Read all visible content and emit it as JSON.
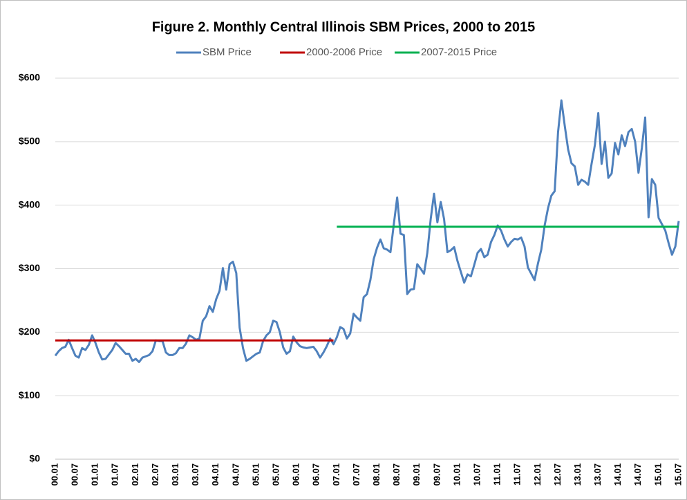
{
  "chart_data": {
    "type": "line",
    "title": "Figure 2.  Monthly Central Illinois SBM Prices, 2000 to 2015",
    "categories": [
      "00.01",
      null,
      null,
      null,
      null,
      null,
      "00.07",
      null,
      null,
      null,
      null,
      null,
      "01.01",
      null,
      null,
      null,
      null,
      null,
      "01.07",
      null,
      null,
      null,
      null,
      null,
      "02.01",
      null,
      null,
      null,
      null,
      null,
      "02.07",
      null,
      null,
      null,
      null,
      null,
      "03.01",
      null,
      null,
      null,
      null,
      null,
      "03.07",
      null,
      null,
      null,
      null,
      null,
      "04.01",
      null,
      null,
      null,
      null,
      null,
      "04.07",
      null,
      null,
      null,
      null,
      null,
      "05.01",
      null,
      null,
      null,
      null,
      null,
      "05.07",
      null,
      null,
      null,
      null,
      null,
      "06.01",
      null,
      null,
      null,
      null,
      null,
      "06.07",
      null,
      null,
      null,
      null,
      null,
      "07.01",
      null,
      null,
      null,
      null,
      null,
      "07.07",
      null,
      null,
      null,
      null,
      null,
      "08.01",
      null,
      null,
      null,
      null,
      null,
      "08.07",
      null,
      null,
      null,
      null,
      null,
      "09.01",
      null,
      null,
      null,
      null,
      null,
      "09.07",
      null,
      null,
      null,
      null,
      null,
      "10.01",
      null,
      null,
      null,
      null,
      null,
      "10.07",
      null,
      null,
      null,
      null,
      null,
      "11.01",
      null,
      null,
      null,
      null,
      null,
      "11.07",
      null,
      null,
      null,
      null,
      null,
      "12.01",
      null,
      null,
      null,
      null,
      null,
      "12.07",
      null,
      null,
      null,
      null,
      null,
      "13.01",
      null,
      null,
      null,
      null,
      null,
      "13.07",
      null,
      null,
      null,
      null,
      null,
      "14.01",
      null,
      null,
      null,
      null,
      null,
      "14.07",
      null,
      null,
      null,
      null,
      null,
      "15.01",
      null,
      null,
      null,
      null,
      null,
      "15.07"
    ],
    "series": [
      {
        "name": "SBM Price",
        "color": "#4f81bd",
        "values": [
          163,
          170,
          175,
          177,
          188,
          175,
          163,
          160,
          175,
          172,
          180,
          195,
          183,
          168,
          157,
          158,
          165,
          172,
          183,
          178,
          172,
          166,
          166,
          155,
          158,
          153,
          160,
          162,
          164,
          170,
          187,
          186,
          186,
          168,
          164,
          164,
          167,
          175,
          175,
          182,
          195,
          192,
          188,
          190,
          218,
          225,
          241,
          232,
          252,
          265,
          301,
          267,
          307,
          311,
          293,
          207,
          175,
          155,
          158,
          162,
          166,
          168,
          186,
          195,
          200,
          218,
          216,
          200,
          176,
          166,
          170,
          193,
          184,
          178,
          176,
          175,
          176,
          177,
          170,
          160,
          168,
          178,
          190,
          181,
          192,
          208,
          205,
          190,
          198,
          229,
          223,
          218,
          255,
          260,
          282,
          315,
          333,
          346,
          332,
          330,
          326,
          370,
          412,
          355,
          353,
          260,
          267,
          268,
          307,
          300,
          292,
          325,
          378,
          418,
          373,
          405,
          378,
          326,
          329,
          334,
          312,
          295,
          278,
          291,
          288,
          306,
          325,
          331,
          318,
          322,
          342,
          353,
          368,
          360,
          346,
          335,
          342,
          347,
          346,
          349,
          335,
          302,
          292,
          282,
          308,
          330,
          368,
          395,
          415,
          422,
          515,
          565,
          525,
          488,
          466,
          461,
          432,
          440,
          437,
          432,
          465,
          495,
          545,
          465,
          500,
          443,
          450,
          498,
          480,
          510,
          493,
          515,
          520,
          500,
          451,
          490,
          538,
          381,
          441,
          432,
          380,
          370,
          360,
          340,
          322,
          335,
          375
        ]
      },
      {
        "name": "2000-2006 Price",
        "color": "#c00000",
        "values": [
          187,
          187,
          187,
          187,
          187,
          187,
          187,
          187,
          187,
          187,
          187,
          187,
          187,
          187,
          187,
          187,
          187,
          187,
          187,
          187,
          187,
          187,
          187,
          187,
          187,
          187,
          187,
          187,
          187,
          187,
          187,
          187,
          187,
          187,
          187,
          187,
          187,
          187,
          187,
          187,
          187,
          187,
          187,
          187,
          187,
          187,
          187,
          187,
          187,
          187,
          187,
          187,
          187,
          187,
          187,
          187,
          187,
          187,
          187,
          187,
          187,
          187,
          187,
          187,
          187,
          187,
          187,
          187,
          187,
          187,
          187,
          187,
          187,
          187,
          187,
          187,
          187,
          187,
          187,
          187,
          187,
          187,
          187,
          187,
          null,
          null,
          null,
          null,
          null,
          null,
          null,
          null,
          null,
          null,
          null,
          null,
          null,
          null,
          null,
          null,
          null,
          null,
          null,
          null,
          null,
          null,
          null,
          null,
          null,
          null,
          null,
          null,
          null,
          null,
          null,
          null,
          null,
          null,
          null,
          null,
          null,
          null,
          null,
          null,
          null,
          null,
          null,
          null,
          null,
          null,
          null,
          null,
          null,
          null,
          null,
          null,
          null,
          null,
          null,
          null,
          null,
          null,
          null,
          null,
          null,
          null,
          null,
          null,
          null,
          null,
          null,
          null,
          null,
          null,
          null,
          null,
          null,
          null,
          null,
          null,
          null,
          null,
          null,
          null,
          null,
          null,
          null,
          null,
          null,
          null,
          null,
          null,
          null,
          null,
          null,
          null,
          null,
          null,
          null,
          null,
          null,
          null,
          null,
          null,
          null,
          null,
          null
        ]
      },
      {
        "name": "2007-2015 Price",
        "color": "#00b050",
        "values": [
          null,
          null,
          null,
          null,
          null,
          null,
          null,
          null,
          null,
          null,
          null,
          null,
          null,
          null,
          null,
          null,
          null,
          null,
          null,
          null,
          null,
          null,
          null,
          null,
          null,
          null,
          null,
          null,
          null,
          null,
          null,
          null,
          null,
          null,
          null,
          null,
          null,
          null,
          null,
          null,
          null,
          null,
          null,
          null,
          null,
          null,
          null,
          null,
          null,
          null,
          null,
          null,
          null,
          null,
          null,
          null,
          null,
          null,
          null,
          null,
          null,
          null,
          null,
          null,
          null,
          null,
          null,
          null,
          null,
          null,
          null,
          null,
          null,
          null,
          null,
          null,
          null,
          null,
          null,
          null,
          null,
          null,
          null,
          null,
          366,
          366,
          366,
          366,
          366,
          366,
          366,
          366,
          366,
          366,
          366,
          366,
          366,
          366,
          366,
          366,
          366,
          366,
          366,
          366,
          366,
          366,
          366,
          366,
          366,
          366,
          366,
          366,
          366,
          366,
          366,
          366,
          366,
          366,
          366,
          366,
          366,
          366,
          366,
          366,
          366,
          366,
          366,
          366,
          366,
          366,
          366,
          366,
          366,
          366,
          366,
          366,
          366,
          366,
          366,
          366,
          366,
          366,
          366,
          366,
          366,
          366,
          366,
          366,
          366,
          366,
          366,
          366,
          366,
          366,
          366,
          366,
          366,
          366,
          366,
          366,
          366,
          366,
          366,
          366,
          366,
          366,
          366,
          366,
          366,
          366,
          366,
          366,
          366,
          366,
          366,
          366,
          366,
          366,
          366,
          366,
          366,
          366,
          366,
          366,
          366,
          366,
          366
        ]
      }
    ],
    "ylim": [
      0,
      600
    ],
    "yticks": [
      {
        "value": 0,
        "label": "$0"
      },
      {
        "value": 100,
        "label": "$100"
      },
      {
        "value": 200,
        "label": "$200"
      },
      {
        "value": 300,
        "label": "$300"
      },
      {
        "value": 400,
        "label": "$400"
      },
      {
        "value": 500,
        "label": "$500"
      },
      {
        "value": 600,
        "label": "$600"
      }
    ],
    "grid": true,
    "legend": "top"
  }
}
